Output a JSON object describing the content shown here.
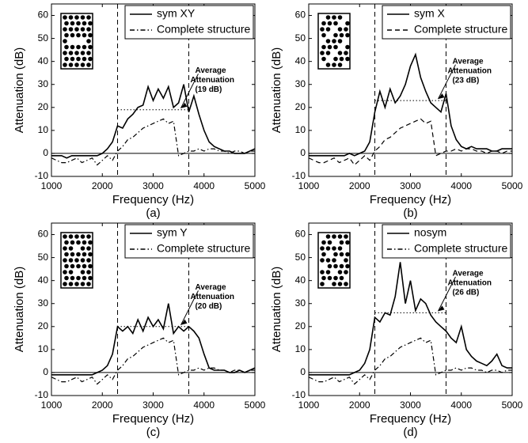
{
  "chart_data": [
    {
      "type": "line",
      "caption": "(a)",
      "xlabel": "Frequency (Hz)",
      "ylabel": "Attenuation (dB)",
      "xlim": [
        1000,
        5000
      ],
      "xticks": [
        1000,
        2000,
        3000,
        4000,
        5000
      ],
      "ylim": [
        -10,
        65
      ],
      "yticks": [
        -10,
        0,
        10,
        20,
        30,
        40,
        50,
        60
      ],
      "vlines": [
        2300,
        3700
      ],
      "hline": 0,
      "average": 19,
      "annotation": [
        "Average",
        "Attenuation",
        "(19 dB)"
      ],
      "legend": "upper right",
      "x": [
        1000,
        1100,
        1200,
        1300,
        1400,
        1500,
        1600,
        1700,
        1800,
        1900,
        2000,
        2100,
        2200,
        2300,
        2400,
        2500,
        2600,
        2700,
        2800,
        2900,
        3000,
        3100,
        3200,
        3300,
        3400,
        3500,
        3600,
        3700,
        3800,
        3900,
        4000,
        4100,
        4200,
        4300,
        4400,
        4500,
        4600,
        4700,
        4800,
        4900,
        5000
      ],
      "series": [
        {
          "name": "sym XY",
          "color": "#000000",
          "style": "solid",
          "values": [
            -1,
            -1,
            -1,
            -2,
            -1,
            -1,
            -1,
            -1,
            -1,
            -1,
            0,
            2,
            5,
            12,
            11,
            15,
            17,
            20,
            21,
            29,
            23,
            28,
            24,
            29,
            20,
            22,
            30,
            18,
            25,
            17,
            10,
            5,
            3,
            2,
            1,
            1,
            0,
            0,
            0,
            1,
            2
          ]
        },
        {
          "name": "Complete structure",
          "color": "#000000",
          "style": "dashdot",
          "values": [
            -2,
            -3,
            -4,
            -4,
            -3,
            -2,
            -4,
            -3,
            -2,
            -5,
            -3,
            -1,
            -3,
            1,
            3,
            6,
            7,
            9,
            11,
            12,
            13,
            14,
            15,
            13,
            14,
            -1,
            0,
            1,
            1,
            2,
            1,
            2,
            2,
            1,
            1,
            0,
            1,
            1,
            0,
            1,
            1
          ]
        }
      ]
    },
    {
      "type": "line",
      "caption": "(b)",
      "xlabel": "Frequency (Hz)",
      "ylabel": "Attenuation (dB)",
      "xlim": [
        1000,
        5000
      ],
      "xticks": [
        1000,
        2000,
        3000,
        4000,
        5000
      ],
      "ylim": [
        -10,
        65
      ],
      "yticks": [
        -10,
        0,
        10,
        20,
        30,
        40,
        50,
        60
      ],
      "vlines": [
        2300,
        3700
      ],
      "hline": 0,
      "average": 23,
      "annotation": [
        "Average",
        "Attenuation",
        "(23 dB)"
      ],
      "legend": "upper right",
      "x": [
        1000,
        1100,
        1200,
        1300,
        1400,
        1500,
        1600,
        1700,
        1800,
        1900,
        2000,
        2100,
        2200,
        2300,
        2400,
        2500,
        2600,
        2700,
        2800,
        2900,
        3000,
        3100,
        3200,
        3300,
        3400,
        3500,
        3600,
        3700,
        3800,
        3900,
        4000,
        4100,
        4200,
        4300,
        4400,
        4500,
        4600,
        4700,
        4800,
        4900,
        5000
      ],
      "series": [
        {
          "name": "sym X",
          "color": "#000000",
          "style": "solid",
          "values": [
            -1,
            -1,
            -1,
            -1,
            -1,
            -1,
            -1,
            -1,
            0,
            -1,
            0,
            1,
            5,
            18,
            27,
            20,
            28,
            22,
            25,
            30,
            38,
            43,
            33,
            27,
            22,
            20,
            18,
            26,
            12,
            6,
            3,
            2,
            3,
            2,
            2,
            2,
            1,
            1,
            2,
            2,
            2
          ]
        },
        {
          "name": "Complete structure",
          "color": "#000000",
          "style": "dashed",
          "values": [
            -2,
            -3,
            -4,
            -4,
            -3,
            -2,
            -4,
            -3,
            -2,
            -5,
            -3,
            -1,
            -3,
            1,
            3,
            6,
            7,
            9,
            11,
            12,
            13,
            14,
            15,
            13,
            14,
            -1,
            0,
            1,
            1,
            2,
            1,
            2,
            2,
            1,
            1,
            0,
            1,
            1,
            0,
            1,
            1
          ]
        }
      ]
    },
    {
      "type": "line",
      "caption": "(c)",
      "xlabel": "Frequency (Hz)",
      "ylabel": "Attenuation (dB)",
      "xlim": [
        1000,
        5000
      ],
      "xticks": [
        1000,
        2000,
        3000,
        4000,
        5000
      ],
      "ylim": [
        -10,
        65
      ],
      "yticks": [
        -10,
        0,
        10,
        20,
        30,
        40,
        50,
        60
      ],
      "vlines": [
        2300,
        3700
      ],
      "hline": 0,
      "average": 20,
      "annotation": [
        "Average",
        "Attenuation",
        "(20 dB)"
      ],
      "legend": "upper right",
      "x": [
        1000,
        1100,
        1200,
        1300,
        1400,
        1500,
        1600,
        1700,
        1800,
        1900,
        2000,
        2100,
        2200,
        2300,
        2400,
        2500,
        2600,
        2700,
        2800,
        2900,
        3000,
        3100,
        3200,
        3300,
        3400,
        3500,
        3600,
        3700,
        3800,
        3900,
        4000,
        4100,
        4200,
        4300,
        4400,
        4500,
        4600,
        4700,
        4800,
        4900,
        5000
      ],
      "series": [
        {
          "name": "sym Y",
          "color": "#000000",
          "style": "solid",
          "values": [
            -1,
            -1,
            -1,
            -1,
            -1,
            -1,
            -1,
            -1,
            -1,
            0,
            1,
            3,
            8,
            20,
            18,
            20,
            17,
            23,
            18,
            24,
            20,
            23,
            19,
            30,
            17,
            20,
            18,
            20,
            18,
            15,
            8,
            2,
            1,
            1,
            1,
            0,
            0,
            1,
            0,
            1,
            2
          ]
        },
        {
          "name": "Complete structure",
          "color": "#000000",
          "style": "dashdot",
          "values": [
            -2,
            -3,
            -4,
            -4,
            -3,
            -2,
            -4,
            -3,
            -2,
            -5,
            -3,
            -1,
            -3,
            1,
            3,
            6,
            7,
            9,
            11,
            12,
            13,
            14,
            15,
            13,
            14,
            -1,
            0,
            1,
            1,
            2,
            1,
            2,
            2,
            1,
            1,
            0,
            1,
            1,
            0,
            1,
            1
          ]
        }
      ]
    },
    {
      "type": "line",
      "caption": "(d)",
      "xlabel": "Frequency (Hz)",
      "ylabel": "Attenuation (dB)",
      "xlim": [
        1000,
        5000
      ],
      "xticks": [
        1000,
        2000,
        3000,
        4000,
        5000
      ],
      "ylim": [
        -10,
        65
      ],
      "yticks": [
        -10,
        0,
        10,
        20,
        30,
        40,
        50,
        60
      ],
      "vlines": [
        2300,
        3700
      ],
      "hline": 0,
      "average": 26,
      "annotation": [
        "Average",
        "Attenuation",
        "(26 dB)"
      ],
      "legend": "upper right",
      "x": [
        1000,
        1100,
        1200,
        1300,
        1400,
        1500,
        1600,
        1700,
        1800,
        1900,
        2000,
        2100,
        2200,
        2300,
        2400,
        2500,
        2600,
        2700,
        2800,
        2900,
        3000,
        3100,
        3200,
        3300,
        3400,
        3500,
        3600,
        3700,
        3800,
        3900,
        4000,
        4100,
        4200,
        4300,
        4400,
        4500,
        4600,
        4700,
        4800,
        4900,
        5000
      ],
      "series": [
        {
          "name": "nosym",
          "color": "#000000",
          "style": "solid",
          "values": [
            -1,
            -1,
            -1,
            -1,
            -1,
            -1,
            -1,
            -1,
            -1,
            0,
            1,
            4,
            10,
            24,
            22,
            26,
            25,
            33,
            48,
            30,
            40,
            27,
            32,
            30,
            25,
            22,
            20,
            18,
            15,
            13,
            20,
            10,
            7,
            5,
            4,
            3,
            5,
            8,
            3,
            2,
            2
          ]
        },
        {
          "name": "Complete structure",
          "color": "#000000",
          "style": "dashdot",
          "values": [
            -2,
            -3,
            -4,
            -4,
            -3,
            -2,
            -4,
            -3,
            -2,
            -5,
            -3,
            -1,
            -3,
            1,
            3,
            6,
            7,
            9,
            11,
            12,
            13,
            14,
            15,
            13,
            14,
            -1,
            0,
            1,
            1,
            2,
            1,
            2,
            2,
            1,
            1,
            0,
            1,
            1,
            0,
            1,
            1
          ]
        }
      ]
    }
  ]
}
